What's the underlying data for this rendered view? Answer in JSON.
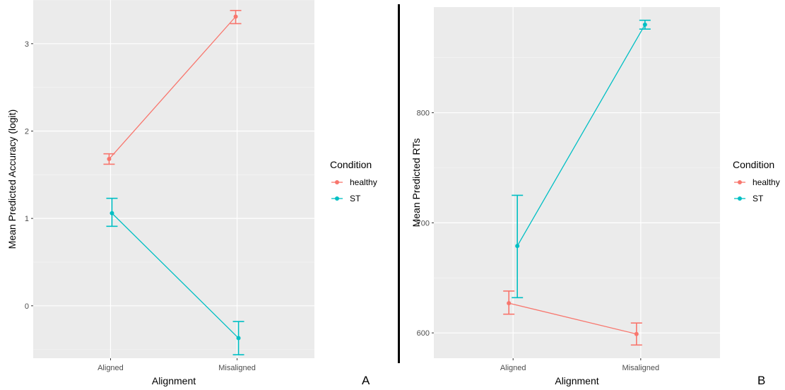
{
  "chart_data": [
    {
      "type": "line",
      "panel_label": "A",
      "xlabel": "Alignment",
      "ylabel": "Mean Predicted Accuracy (logit)",
      "categories": [
        "Aligned",
        "Misaligned"
      ],
      "ylim": [
        -0.6,
        3.5
      ],
      "yticks": [
        0,
        1,
        2,
        3
      ],
      "grid": true,
      "legend": {
        "title": "Condition",
        "position": "right"
      },
      "series": [
        {
          "name": "healthy",
          "color": "#f8766d",
          "values": [
            1.68,
            3.31
          ],
          "error_low": [
            1.62,
            3.23
          ],
          "error_high": [
            1.74,
            3.38
          ]
        },
        {
          "name": "ST",
          "color": "#00bfc4",
          "values": [
            1.06,
            -0.37
          ],
          "error_low": [
            0.91,
            -0.56
          ],
          "error_high": [
            1.23,
            -0.18
          ]
        }
      ]
    },
    {
      "type": "line",
      "panel_label": "B",
      "xlabel": "Alignment",
      "ylabel": "Mean Predicted RTs",
      "categories": [
        "Aligned",
        "Misaligned"
      ],
      "ylim": [
        577,
        896
      ],
      "yticks": [
        600,
        700,
        800
      ],
      "grid": true,
      "legend": {
        "title": "Condition",
        "position": "right"
      },
      "series": [
        {
          "name": "healthy",
          "color": "#f8766d",
          "values": [
            627,
            599
          ],
          "error_low": [
            617,
            589
          ],
          "error_high": [
            638,
            609
          ]
        },
        {
          "name": "ST",
          "color": "#00bfc4",
          "values": [
            679,
            880
          ],
          "error_low": [
            632,
            876
          ],
          "error_high": [
            725,
            884
          ]
        }
      ]
    }
  ]
}
